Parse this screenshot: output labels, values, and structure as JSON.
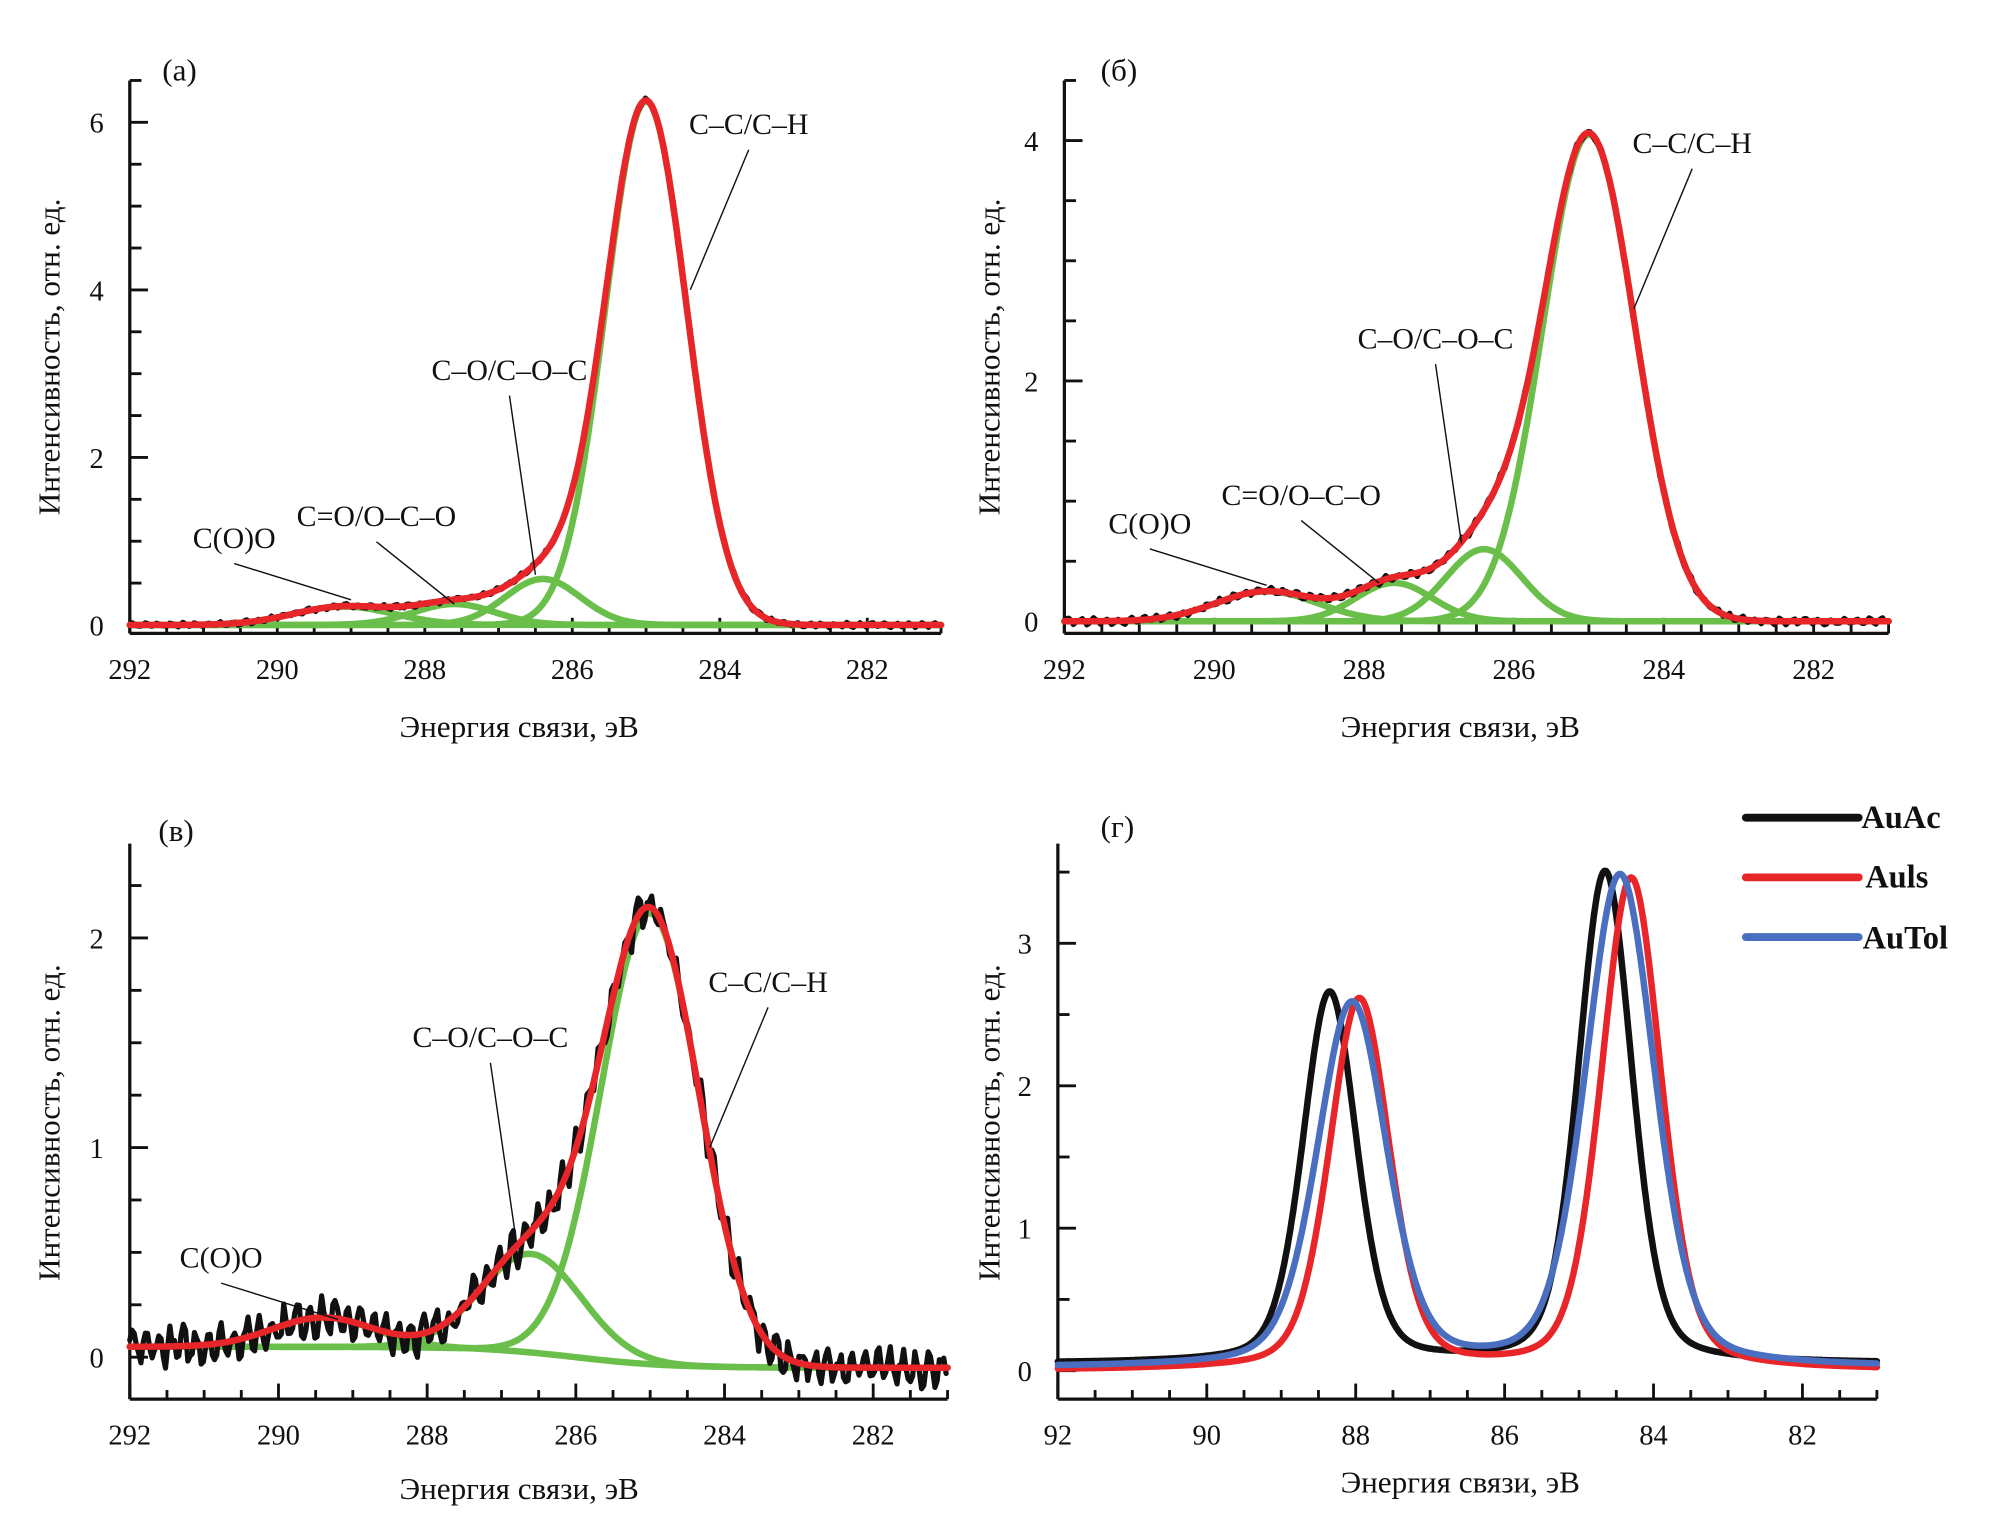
{
  "chart_data": [
    {
      "id": "a",
      "type": "line",
      "panel_label": "(a)",
      "xlabel": "Энергия связи, эВ",
      "ylabel": "Интенсивность, отн. ед.",
      "xlim": [
        292,
        281
      ],
      "ylim": [
        -0.1,
        6.5
      ],
      "xticks": [
        292,
        290,
        288,
        286,
        284,
        282
      ],
      "yticks": [
        0,
        2,
        4,
        6
      ],
      "colors": {
        "experiment": "#111111",
        "envelope": "#e8262a",
        "component": "#6abf4b"
      },
      "components": [
        {
          "name": "C–C/C–H",
          "center": 285.0,
          "height": 6.25,
          "fwhm": 1.3
        },
        {
          "name": "C–O/C–O–C",
          "center": 286.4,
          "height": 0.55,
          "fwhm": 1.2
        },
        {
          "name": "C=O/O–C–O",
          "center": 287.6,
          "height": 0.25,
          "fwhm": 1.3
        },
        {
          "name": "C(O)O",
          "center": 289.1,
          "height": 0.22,
          "fwhm": 1.6
        }
      ],
      "annotations": [
        {
          "text": "C–C/C–H",
          "x": 284.4,
          "y": 4.0
        },
        {
          "text": "C–O/C–O–C",
          "x": 286.5,
          "y": 0.6
        },
        {
          "text": "C=O/O–C–O",
          "x": 287.6,
          "y": 0.25
        },
        {
          "text": "C(O)O",
          "x": 289.0,
          "y": 0.3
        }
      ],
      "noise": 0.02
    },
    {
      "id": "b",
      "type": "line",
      "panel_label": "(б)",
      "xlabel": "Энергия связи, эВ",
      "ylabel": "Интенсивность, отн. ед.",
      "xlim": [
        292,
        281
      ],
      "ylim": [
        -0.1,
        4.5
      ],
      "xticks": [
        292,
        290,
        288,
        286,
        284,
        282
      ],
      "yticks": [
        0,
        2,
        4
      ],
      "colors": {
        "experiment": "#111111",
        "envelope": "#e8262a",
        "component": "#6abf4b"
      },
      "components": [
        {
          "name": "C–C/C–H",
          "center": 285.0,
          "height": 4.05,
          "fwhm": 1.45
        },
        {
          "name": "C–O/C–O–C",
          "center": 286.4,
          "height": 0.6,
          "fwhm": 1.2
        },
        {
          "name": "C=O/O–C–O",
          "center": 287.6,
          "height": 0.32,
          "fwhm": 1.2
        },
        {
          "name": "C(O)O",
          "center": 289.3,
          "height": 0.25,
          "fwhm": 1.6
        }
      ],
      "annotations": [
        {
          "text": "C–C/C–H",
          "x": 284.4,
          "y": 2.6
        },
        {
          "text": "C–O/C–O–C",
          "x": 286.7,
          "y": 0.65
        },
        {
          "text": "C=O/O–C–O",
          "x": 287.8,
          "y": 0.32
        },
        {
          "text": "C(O)O",
          "x": 289.3,
          "y": 0.3
        }
      ],
      "noise": 0.02
    },
    {
      "id": "v",
      "type": "line",
      "panel_label": "(в)",
      "xlabel": "Энергия связи, эВ",
      "ylabel": "Интенсивность, отн. ед.",
      "xlim": [
        292,
        281
      ],
      "ylim": [
        -0.2,
        2.45
      ],
      "xticks": [
        292,
        290,
        288,
        286,
        284,
        282
      ],
      "yticks": [
        0,
        1,
        2
      ],
      "colors": {
        "experiment": "#111111",
        "envelope": "#e8262a",
        "component": "#6abf4b"
      },
      "baseline": {
        "left": 0.05,
        "right": -0.05
      },
      "components": [
        {
          "name": "C–C/C–H",
          "center": 285.0,
          "height": 2.15,
          "fwhm": 1.55
        },
        {
          "name": "C–O/C–O–C",
          "center": 286.6,
          "height": 0.47,
          "fwhm": 1.6
        },
        {
          "name": "C(O)O",
          "center": 289.4,
          "height": 0.14,
          "fwhm": 1.6
        }
      ],
      "annotations": [
        {
          "text": "C–C/C–H",
          "x": 284.2,
          "y": 1.0
        },
        {
          "text": "C–O/C–O–C",
          "x": 286.8,
          "y": 0.55
        },
        {
          "text": "C(O)O",
          "x": 289.2,
          "y": 0.18
        }
      ],
      "noise": 0.07
    },
    {
      "id": "g",
      "type": "line",
      "panel_label": "(г)",
      "xlabel": "Энергия связи, эВ",
      "ylabel": "Интенсивность, отн. ед.",
      "xlim": [
        92,
        81
      ],
      "ylim": [
        -0.2,
        3.7
      ],
      "xticks": [
        92,
        90,
        88,
        86,
        84,
        82
      ],
      "yticks": [
        0,
        1,
        2,
        3
      ],
      "legend_position": "top-right",
      "series": [
        {
          "name": "AuAc",
          "color": "#111111",
          "peaks": [
            {
              "center": 88.35,
              "height": 2.6
            },
            {
              "center": 84.65,
              "height": 3.45
            }
          ],
          "fwhm": 0.85,
          "baseline": 0.05
        },
        {
          "name": "Auls",
          "color": "#e8262a",
          "peaks": [
            {
              "center": 87.95,
              "height": 2.6
            },
            {
              "center": 84.3,
              "height": 3.45
            }
          ],
          "fwhm": 0.95,
          "baseline": 0.0
        },
        {
          "name": "AuTol",
          "color": "#4a6fc0",
          "peaks": [
            {
              "center": 88.05,
              "height": 2.55
            },
            {
              "center": 84.45,
              "height": 3.45
            }
          ],
          "fwhm": 1.1,
          "baseline": 0.02
        }
      ]
    }
  ]
}
